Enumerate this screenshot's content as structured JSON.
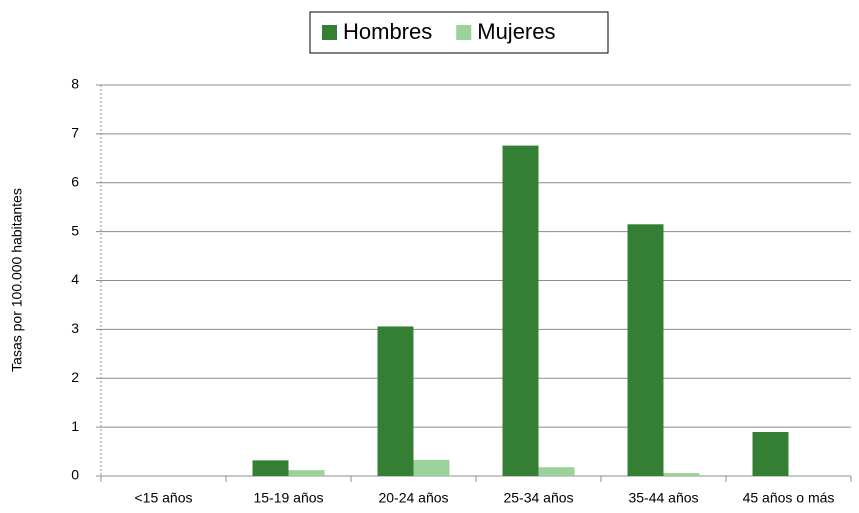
{
  "chart_data": {
    "type": "bar",
    "categories": [
      "<15 años",
      "15-19 años",
      "20-24 años",
      "25-34 años",
      "35-44 años",
      "45 años o más"
    ],
    "series": [
      {
        "name": "Hombres",
        "color": "#357f34",
        "values": [
          0,
          0.32,
          3.06,
          6.76,
          5.15,
          0.9
        ]
      },
      {
        "name": "Mujeres",
        "color": "#9bd19a",
        "values": [
          0,
          0.12,
          0.33,
          0.18,
          0.06,
          0
        ]
      }
    ],
    "ylabel": "Tasas por 100.000 habitantes",
    "ylim": [
      0,
      8
    ],
    "yticks": [
      0,
      1,
      2,
      3,
      4,
      5,
      6,
      7,
      8
    ],
    "grid": true,
    "legend": "top"
  }
}
